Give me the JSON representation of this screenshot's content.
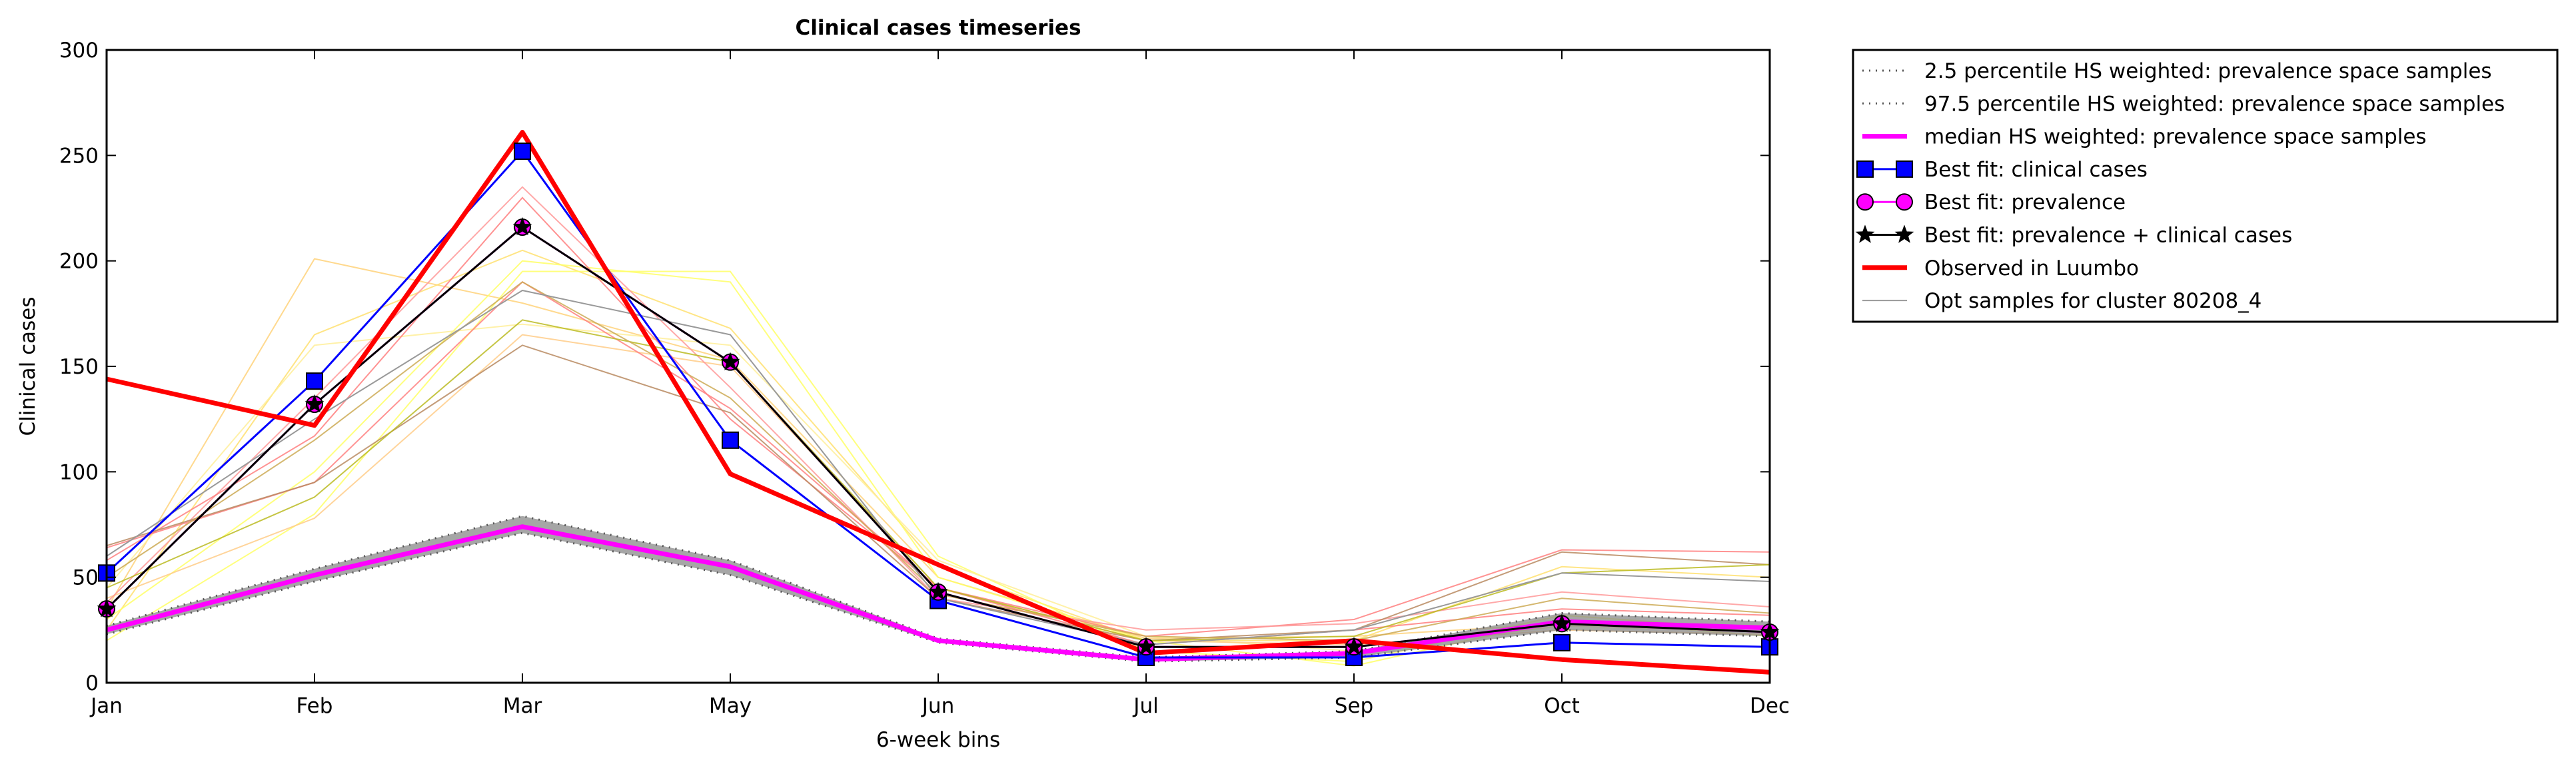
{
  "chart_data": {
    "type": "line",
    "title": "Clinical cases timeseries",
    "xlabel": "6-week bins",
    "ylabel": "Clinical cases",
    "categories": [
      "Jan",
      "Feb",
      "Mar",
      "May",
      "Jun",
      "Jul",
      "Sep",
      "Oct",
      "Dec"
    ],
    "ylim": [
      0,
      300
    ],
    "yticks": [
      0,
      50,
      100,
      150,
      200,
      250,
      300
    ],
    "grid": false,
    "legend_position": "outside-top-right",
    "band": {
      "lower": [
        23,
        48,
        71,
        51,
        19,
        10,
        12,
        25,
        22
      ],
      "upper": [
        27,
        54,
        79,
        58,
        21,
        12,
        15,
        33,
        29
      ],
      "color": "#888888"
    },
    "series": [
      {
        "name": "2.5 percentile HS weighted: prevalence space samples",
        "style": "dotted",
        "color": "#555555",
        "values": [
          23,
          48,
          71,
          51,
          19,
          10,
          12,
          25,
          22
        ]
      },
      {
        "name": "97.5 percentile HS weighted: prevalence space samples",
        "style": "dotted",
        "color": "#555555",
        "values": [
          27,
          54,
          79,
          58,
          21,
          12,
          15,
          33,
          29
        ]
      },
      {
        "name": "median HS weighted: prevalence space samples",
        "style": "solid-thick",
        "color": "#ff00ff",
        "values": [
          25,
          51,
          74,
          55,
          20,
          11,
          14,
          29,
          26
        ]
      },
      {
        "name": "Best fit: clinical cases",
        "style": "line-square",
        "color": "#0000ff",
        "values": [
          52,
          143,
          252,
          115,
          39,
          12,
          12,
          19,
          17
        ]
      },
      {
        "name": "Best fit: prevalence",
        "style": "line-circle",
        "color": "#ff00ff",
        "values": [
          35,
          132,
          216,
          152,
          43,
          17,
          17,
          28,
          24
        ]
      },
      {
        "name": "Best fit: prevalence + clinical cases",
        "style": "line-star",
        "color": "#000000",
        "values": [
          35,
          132,
          216,
          152,
          43,
          17,
          17,
          28,
          24
        ]
      },
      {
        "name": "Observed in Luumbo",
        "style": "solid-thick",
        "color": "#ff0000",
        "values": [
          144,
          122,
          261,
          99,
          56,
          14,
          20,
          11,
          5
        ]
      },
      {
        "name": "Opt samples for cluster 80208_4",
        "style": "thin",
        "color": "#999999",
        "values": [
          60,
          125,
          186,
          165,
          40,
          18,
          25,
          52,
          48
        ]
      }
    ],
    "samples": [
      {
        "color": "#ffd27a",
        "values": [
          35,
          201,
          180,
          153,
          50,
          21,
          22,
          28,
          27
        ]
      },
      {
        "color": "#ffe070",
        "values": [
          25,
          165,
          205,
          168,
          55,
          20,
          20,
          55,
          50
        ]
      },
      {
        "color": "#ffff66",
        "values": [
          20,
          80,
          195,
          195,
          60,
          15,
          10,
          32,
          25
        ]
      },
      {
        "color": "#ffff66",
        "values": [
          30,
          100,
          200,
          190,
          50,
          20,
          8,
          30,
          22
        ]
      },
      {
        "color": "#ffef99",
        "values": [
          45,
          160,
          170,
          160,
          58,
          22,
          15,
          27,
          24
        ]
      },
      {
        "color": "#ffcc88",
        "values": [
          40,
          78,
          165,
          150,
          45,
          20,
          18,
          25,
          23
        ]
      },
      {
        "color": "#ff8080",
        "values": [
          64,
          95,
          190,
          130,
          45,
          22,
          30,
          63,
          62
        ]
      },
      {
        "color": "#ff9999",
        "values": [
          38,
          135,
          235,
          140,
          40,
          25,
          28,
          43,
          36
        ]
      },
      {
        "color": "#ff7f7f",
        "values": [
          58,
          117,
          230,
          125,
          45,
          18,
          25,
          35,
          32
        ]
      },
      {
        "color": "#b88a60",
        "values": [
          65,
          95,
          160,
          128,
          40,
          20,
          25,
          62,
          56
        ]
      },
      {
        "color": "#bbbb22",
        "values": [
          45,
          88,
          172,
          152,
          45,
          20,
          22,
          52,
          56
        ]
      },
      {
        "color": "#ccaa55",
        "values": [
          50,
          115,
          190,
          135,
          42,
          22,
          20,
          40,
          33
        ]
      }
    ]
  }
}
